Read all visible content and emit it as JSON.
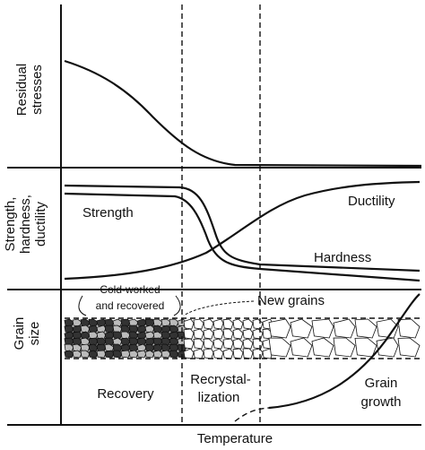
{
  "axis_labels": {
    "residual_stresses": [
      "Residual",
      "stresses"
    ],
    "mechanical": [
      "Strength,",
      "hardness,",
      "ductility"
    ],
    "grain_size": [
      "Grain",
      "size"
    ],
    "x": "Temperature"
  },
  "curve_labels": {
    "strength": "Strength",
    "ductility": "Ductility",
    "hardness": "Hardness"
  },
  "grain_labels": {
    "cold_worked": [
      "Cold-worked",
      "and recovered"
    ],
    "new_grains": "New grains"
  },
  "stages": [
    [
      "Recovery"
    ],
    [
      "Recrystal-",
      "lization"
    ],
    [
      "Grain",
      "growth"
    ]
  ]
}
